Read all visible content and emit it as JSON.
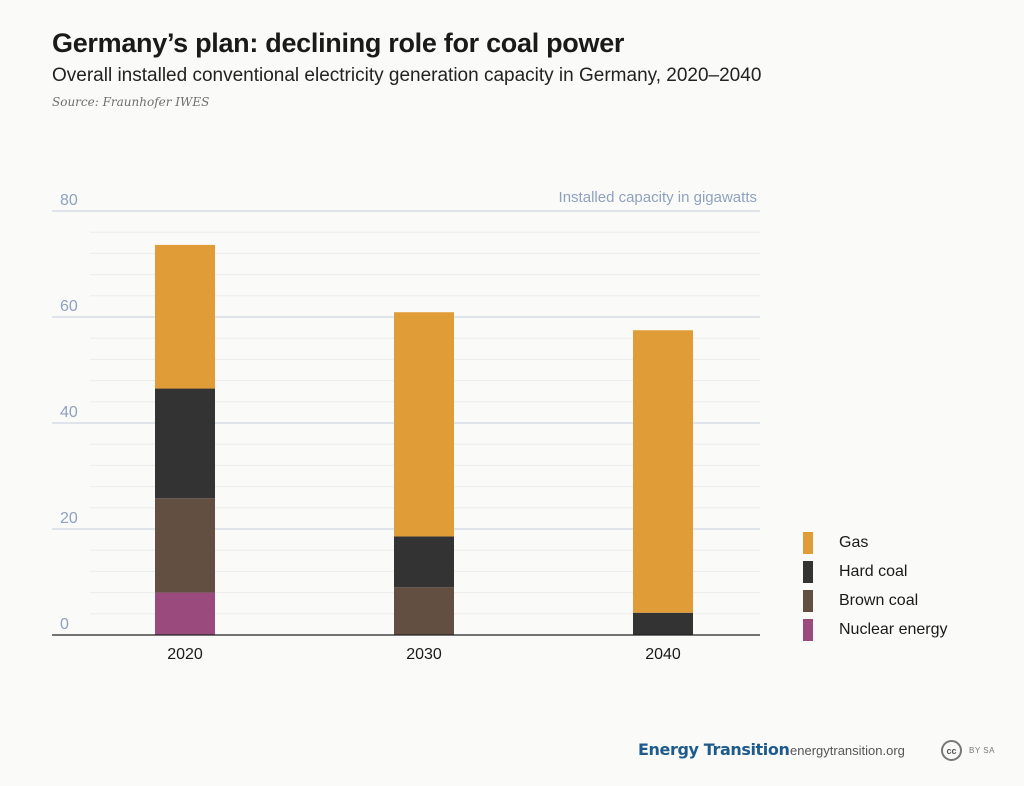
{
  "header": {
    "title": "Germany’s plan: declining role for coal power",
    "subtitle": "Overall installed conventional electricity generation capacity in Germany, 2020–2040",
    "source": "Source: Fraunhofer IWES"
  },
  "chart_data": {
    "type": "bar",
    "stacked": true,
    "title": "Germany’s plan: declining role for coal power",
    "subtitle": "Overall installed conventional electricity generation capacity in Germany, 2020–2040",
    "ylabel": "Installed capacity in gigawatts",
    "xlabel": "",
    "categories": [
      "2020",
      "2030",
      "2040"
    ],
    "ylim": [
      0,
      80
    ],
    "yticks": [
      0,
      20,
      40,
      60,
      80
    ],
    "grid": true,
    "legend_position": "right",
    "series": [
      {
        "name": "Nuclear energy",
        "color": "#9b4a7e",
        "values": [
          8,
          0,
          0
        ]
      },
      {
        "name": "Brown coal",
        "color": "#634f42",
        "values": [
          17.8,
          9,
          0
        ]
      },
      {
        "name": "Hard coal",
        "color": "#333333",
        "values": [
          20.7,
          9.6,
          4.2
        ]
      },
      {
        "name": "Gas",
        "color": "#e09c36",
        "values": [
          27.1,
          42.3,
          53.3
        ]
      }
    ]
  },
  "legend": {
    "items": [
      {
        "label": "Gas",
        "color": "#e09c36"
      },
      {
        "label": "Hard coal",
        "color": "#333333"
      },
      {
        "label": "Brown coal",
        "color": "#634f42"
      },
      {
        "label": "Nuclear energy",
        "color": "#9b4a7e"
      }
    ]
  },
  "footer": {
    "brand": "Energy Transition",
    "site": "energytransition.org",
    "license_icon": "cc",
    "license_text": "BY SA"
  }
}
